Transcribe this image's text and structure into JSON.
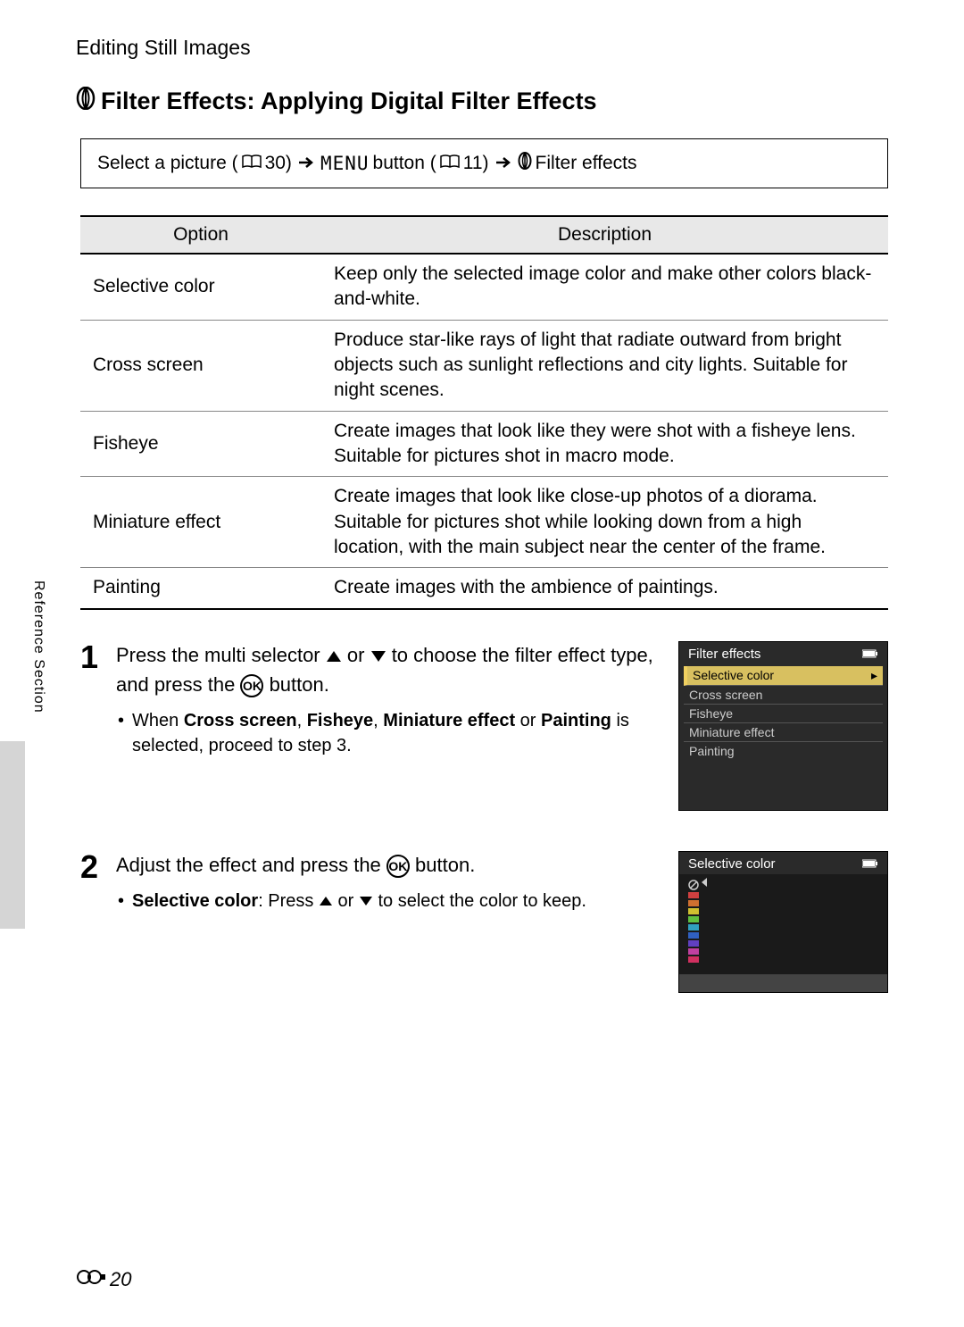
{
  "header": {
    "breadcrumb": "Editing Still Images"
  },
  "title": "Filter Effects: Applying Digital Filter Effects",
  "navbox": {
    "seg1": "Select a picture (",
    "ref1": "30) ",
    "seg2": " button (",
    "ref2": "11) ",
    "menu_label": "MENU",
    "seg3": " Filter effects"
  },
  "table": {
    "col1": "Option",
    "col2": "Description",
    "rows": [
      {
        "opt": "Selective color",
        "desc": "Keep only the selected image color and make other colors black-and-white."
      },
      {
        "opt": "Cross screen",
        "desc": "Produce star-like rays of light that radiate outward from bright objects such as sunlight reflections and city lights. Suitable for night scenes."
      },
      {
        "opt": "Fisheye",
        "desc": "Create images that look like they were shot with a fisheye lens. Suitable for pictures shot in macro mode."
      },
      {
        "opt": "Miniature effect",
        "desc": "Create images that look like close-up photos of a diorama. Suitable for pictures shot while looking down from a high location, with the main subject near the center of the frame."
      },
      {
        "opt": "Painting",
        "desc": "Create images with the ambience of paintings."
      }
    ]
  },
  "steps": {
    "s1": {
      "num": "1",
      "title_a": "Press the multi selector ",
      "title_b": " or ",
      "title_c": " to choose the filter effect type, and press the ",
      "title_d": " button.",
      "bullet_a": "When ",
      "b1": "Cross screen",
      "comma1": ", ",
      "b2": "Fisheye",
      "comma2": ", ",
      "b3": "Miniature effect",
      "or": " or ",
      "b4": "Painting",
      "bullet_b": " is selected, proceed to step 3."
    },
    "s2": {
      "num": "2",
      "title_a": "Adjust the effect and press the ",
      "title_b": " button.",
      "bullet_lead": "Selective color",
      "bullet_a": ": Press ",
      "bullet_b": " or ",
      "bullet_c": " to select the color to keep."
    }
  },
  "ok_label": "OK",
  "screen1": {
    "title": "Filter effects",
    "items": [
      "Selective color",
      "Cross screen",
      "Fisheye",
      "Miniature effect",
      "Painting"
    ],
    "selected_index": 0
  },
  "screen2": {
    "title": "Selective color",
    "swatches": [
      "#d04040",
      "#d07030",
      "#d0c030",
      "#60c040",
      "#30a0c0",
      "#3060c0",
      "#6040c0",
      "#c040a0",
      "#d03060"
    ]
  },
  "side_label": "Reference Section",
  "footer": {
    "page": "20"
  },
  "colors": {
    "bg": "#ffffff",
    "table_header_bg": "#e8e8e8",
    "screen_bg": "#2a2a2a",
    "selected_bg": "#d8c060"
  }
}
